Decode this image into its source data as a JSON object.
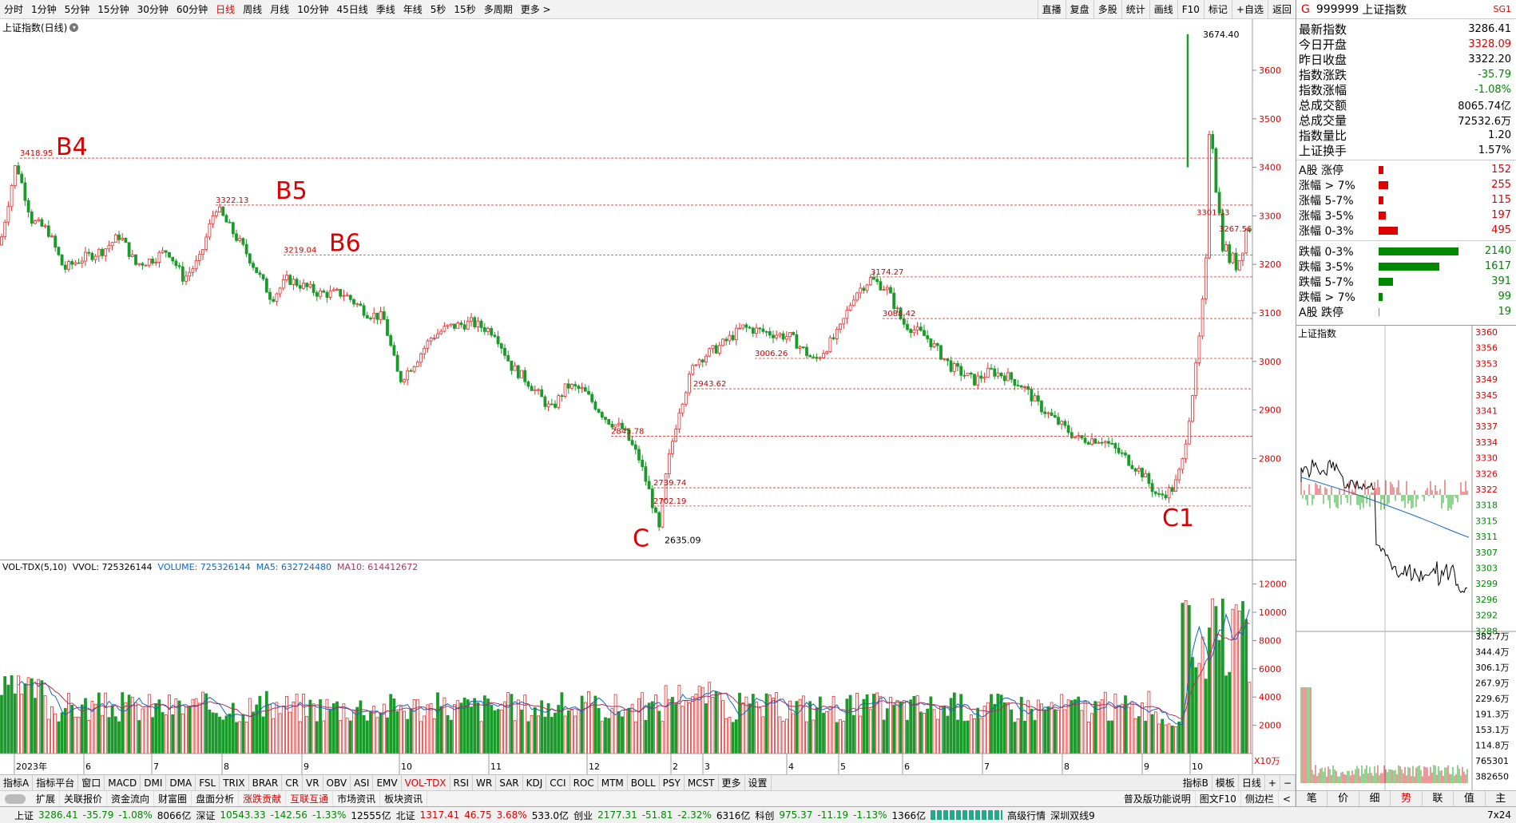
{
  "toolbar": {
    "periods": [
      "分时",
      "1分钟",
      "5分钟",
      "15分钟",
      "30分钟",
      "60分钟",
      "日线",
      "周线",
      "月线",
      "10分钟",
      "45日线",
      "季线",
      "年线",
      "5秒",
      "15秒",
      "多周期",
      "更多 >"
    ],
    "active": "日线",
    "right": [
      "直播",
      "复盘",
      "多股",
      "统计",
      "画线",
      "F10",
      "标记",
      "+自选",
      "返回"
    ]
  },
  "main": {
    "title": "上证指数(日线)",
    "yticks": [
      "3600",
      "3500",
      "3400",
      "3300",
      "3200",
      "3100",
      "3000",
      "2900",
      "2800"
    ],
    "annotations": {
      "b4": "B4",
      "b5": "B5",
      "b6": "B6",
      "c": "C",
      "c1": "C1"
    },
    "levels": [
      "3418.95",
      "3322.13",
      "3219.04",
      "3174.27",
      "3088.42",
      "3006.26",
      "2943.62",
      "2845.78",
      "2739.74",
      "2702.19",
      "2635.09",
      "3674.40",
      "3301.33",
      "3267.56"
    ]
  },
  "vol": {
    "title": "VOL-TDX(5,10)",
    "vvol": "VVOL: 725326144",
    "volume": "VOLUME: 725326144",
    "ma5": "MA5: 632724480",
    "ma10": "MA10: 614412672",
    "yticks": [
      "12000",
      "10000",
      "8000",
      "6000",
      "4000",
      "2000"
    ],
    "unit": "X10万",
    "xlabels": [
      "2023年",
      "6",
      "7",
      "8",
      "9",
      "10",
      "11",
      "12",
      "2",
      "3",
      "4",
      "5",
      "6",
      "7",
      "8",
      "9",
      "10"
    ]
  },
  "sheet_tabs": [
    "指标A",
    "指标平台",
    "窗口",
    "MACD",
    "DMI",
    "DMA",
    "FSL",
    "TRIX",
    "BRAR",
    "CR",
    "VR",
    "OBV",
    "ASI",
    "EMV",
    "VOL-TDX",
    "RSI",
    "WR",
    "SAR",
    "KDJ",
    "CCI",
    "ROC",
    "MTM",
    "BOLL",
    "PSY",
    "MCST",
    "更多",
    "设置"
  ],
  "sheet_active": "VOL-TDX",
  "sheet_right": [
    "指标B",
    "模板",
    "日线",
    "+",
    "−"
  ],
  "sheet2": [
    "扩展",
    "关联报价",
    "资金流向",
    "财富圈",
    "盘面分析",
    "涨跌贡献",
    "互联互通",
    "市场资讯",
    "板块资讯"
  ],
  "sheet2_red": [
    "涨跌贡献",
    "互联互通"
  ],
  "sheet2_right": [
    "普及版功能说明",
    "图文F10",
    "侧边栏",
    "<"
  ],
  "status": {
    "sh_label": "上证",
    "sh": "3286.41",
    "sh_chg": "-35.79",
    "sh_pct": "-1.08%",
    "sh_amt": "8066亿",
    "sz_label": "深证",
    "sz": "10543.33",
    "sz_chg": "-142.56",
    "sz_pct": "-1.33%",
    "sz_amt": "12555亿",
    "bei_label": "北证",
    "bei": "1317.41",
    "bei_chg": "46.75",
    "bei_pct": "3.68%",
    "bei_amt": "533.0亿",
    "cy_label": "创业",
    "cy": "2177.31",
    "cy_chg": "-51.81",
    "cy_pct": "-2.32%",
    "cy_amt": "6316亿",
    "kc_label": "科创",
    "kc": "975.37",
    "kc_chg": "-11.19",
    "kc_pct": "-1.13%",
    "kc_amt": "1366亿",
    "tail1": "高级行情",
    "tail2": "深圳双线9",
    "tail3": "7x24"
  },
  "right": {
    "code": "999999",
    "name": "上证指数",
    "flag": "G",
    "sub": "SG1",
    "rows": [
      {
        "k": "最新指数",
        "v": "3286.41"
      },
      {
        "k": "今日开盘",
        "v": "3328.09"
      },
      {
        "k": "昨日收盘",
        "v": "3322.20"
      },
      {
        "k": "指数涨跌",
        "v": "-35.79"
      },
      {
        "k": "指数涨幅",
        "v": "-1.08%"
      },
      {
        "k": "总成交额",
        "v": "8065.74亿"
      },
      {
        "k": "总成交量",
        "v": "72532.6万"
      },
      {
        "k": "指数量比",
        "v": "1.20"
      },
      {
        "k": "上证换手",
        "v": "1.57%"
      }
    ],
    "ups": [
      {
        "k": "A股 涨停",
        "v": "152",
        "w": 6
      },
      {
        "k": "涨幅 > 7%",
        "v": "255",
        "w": 12
      },
      {
        "k": "涨幅 5-7%",
        "v": "115",
        "w": 6
      },
      {
        "k": "涨幅 3-5%",
        "v": "197",
        "w": 9
      },
      {
        "k": "涨幅 0-3%",
        "v": "495",
        "w": 24
      }
    ],
    "downs": [
      {
        "k": "跌幅 0-3%",
        "v": "2140",
        "w": 100
      },
      {
        "k": "跌幅 3-5%",
        "v": "1617",
        "w": 76
      },
      {
        "k": "跌幅 5-7%",
        "v": "391",
        "w": 18
      },
      {
        "k": "跌幅 > 7%",
        "v": "99",
        "w": 5
      },
      {
        "k": "A股 跌停",
        "v": "19",
        "w": 1
      }
    ],
    "mini_title": "上证指数",
    "mini_ticks": [
      "3360",
      "3356",
      "3353",
      "3349",
      "3345",
      "3341",
      "3337",
      "3334",
      "3330",
      "3326",
      "3322",
      "3318",
      "3315",
      "3311",
      "3307",
      "3303",
      "3299",
      "3296",
      "3292",
      "3288"
    ],
    "vol_ticks": [
      "382.7万",
      "344.4万",
      "306.1万",
      "267.9万",
      "229.6万",
      "191.3万",
      "153.1万",
      "114.8万",
      "765301",
      "382650"
    ],
    "tabs": [
      "笔",
      "价",
      "细",
      "势",
      "联",
      "值",
      "主"
    ],
    "tab_active": "势"
  }
}
